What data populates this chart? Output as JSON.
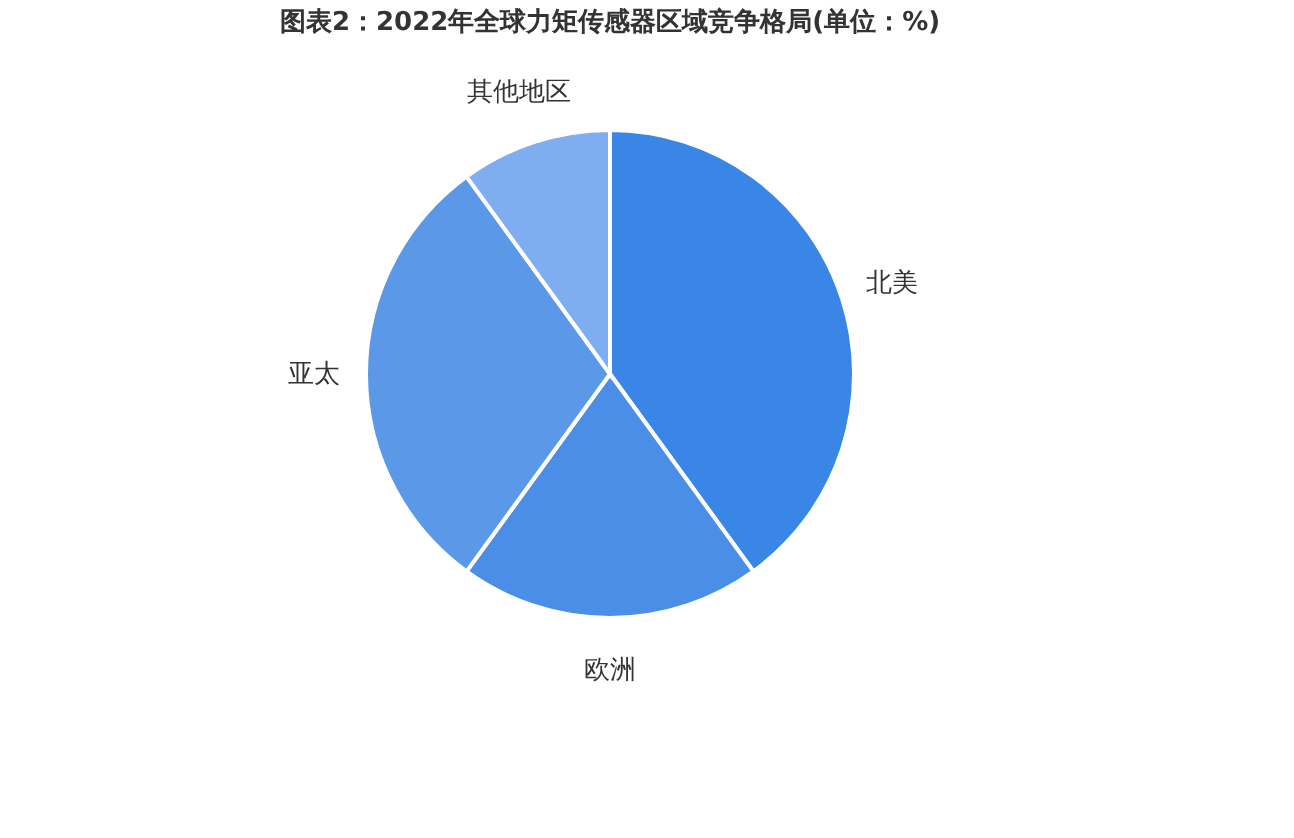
{
  "chart_data": {
    "type": "pie",
    "title": "图表2：2022年全球力矩传感器区域竞争格局(单位：%)",
    "categories": [
      "北美",
      "欧洲",
      "亚太",
      "其他地区"
    ],
    "values": [
      40,
      20,
      30,
      10
    ],
    "colors": [
      "#3a86e6",
      "#4a8ee8",
      "#5b98e8",
      "#7eaef0"
    ],
    "legend": false
  }
}
